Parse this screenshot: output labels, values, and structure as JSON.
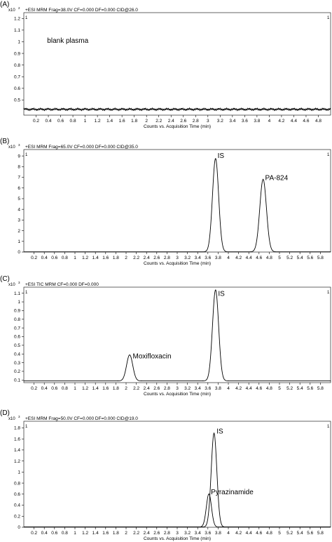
{
  "chart_data": [
    {
      "type": "line",
      "panel_label": "(A)",
      "header": "+ESI MRM Frag=38.0V CF=0.000 DF=0.000 CID@26.0",
      "y_exponent": "x10",
      "y_exp_power": "2",
      "corner_index": "1",
      "xlabel": "Counts vs. Acquisition Time (min)",
      "xlim": [
        0,
        5
      ],
      "ylim": [
        0.37,
        1.25
      ],
      "x_ticks": [
        "0.2",
        "0.4",
        "0.6",
        "0.8",
        "1",
        "1.2",
        "1.4",
        "1.6",
        "1.8",
        "2",
        "2.2",
        "2.4",
        "2.6",
        "2.8",
        "3",
        "3.2",
        "3.4",
        "3.6",
        "3.8",
        "4",
        "4.2",
        "4.4",
        "4.6",
        "4.8"
      ],
      "y_ticks": [
        "0.5",
        "0.6",
        "0.7",
        "0.8",
        "0.9",
        "1",
        "1.1",
        "1.2"
      ],
      "series": [
        {
          "baseline": 0.42,
          "peaks": []
        }
      ],
      "annotations": [
        {
          "text": "blank plasma",
          "x": 0.38,
          "y": 0.99
        }
      ]
    },
    {
      "type": "line",
      "panel_label": "(B)",
      "header": "+ESI MRM Frag=65.0V CF=0.000 DF=0.000 CID@35.0",
      "y_exponent": "x10",
      "y_exp_power": "3",
      "corner_index": "1",
      "xlabel": "Counts vs. Acquisition Time (min)",
      "xlim": [
        0,
        6
      ],
      "ylim": [
        0,
        9.6
      ],
      "x_ticks": [
        "0.2",
        "0.4",
        "0.6",
        "0.8",
        "1",
        "1.2",
        "1.4",
        "1.6",
        "1.8",
        "2",
        "2.2",
        "2.4",
        "2.6",
        "2.8",
        "3",
        "3.2",
        "3.4",
        "3.6",
        "3.8",
        "4",
        "4.2",
        "4.4",
        "4.6",
        "4.8",
        "5",
        "5.2",
        "5.4",
        "5.6",
        "5.8"
      ],
      "y_ticks": [
        "0",
        "1",
        "2",
        "3",
        "4",
        "5",
        "6",
        "7",
        "8",
        "9"
      ],
      "series": [
        {
          "baseline": 0.02,
          "peaks": [
            {
              "center": 3.75,
              "height": 8.75,
              "width": 0.06
            },
            {
              "center": 4.68,
              "height": 6.8,
              "width": 0.065
            }
          ]
        }
      ],
      "annotations": [
        {
          "text": "IS",
          "x": 3.79,
          "y": 8.8
        },
        {
          "text": "PA-824",
          "x": 4.72,
          "y": 6.75
        }
      ]
    },
    {
      "type": "line",
      "panel_label": "(C)",
      "header": "+ESI TIC MRM CF=0.000 DF=0.000",
      "y_exponent": "x10",
      "y_exp_power": "3",
      "corner_index": "1",
      "xlabel": "Counts vs. Acquisition Time (min)",
      "xlim": [
        0,
        6
      ],
      "ylim": [
        0.07,
        1.17
      ],
      "x_ticks": [
        "0.2",
        "0.4",
        "0.6",
        "0.8",
        "1",
        "1.2",
        "1.4",
        "1.6",
        "1.8",
        "2",
        "2.2",
        "2.4",
        "2.6",
        "2.8",
        "3",
        "3.2",
        "3.4",
        "3.6",
        "3.8",
        "4",
        "4.2",
        "4.4",
        "4.6",
        "4.8",
        "5",
        "5.2",
        "5.4",
        "5.6",
        "5.8"
      ],
      "y_ticks": [
        "0.1",
        "0.2",
        "0.3",
        "0.4",
        "0.5",
        "0.6",
        "0.7",
        "0.8",
        "0.9",
        "1",
        "1.1"
      ],
      "series": [
        {
          "baseline": 0.09,
          "peaks": [
            {
              "center": 2.07,
              "height": 0.3,
              "width": 0.06
            },
            {
              "center": 3.75,
              "height": 1.05,
              "width": 0.06
            }
          ]
        }
      ],
      "annotations": [
        {
          "text": "Moxifloxacin",
          "x": 2.13,
          "y": 0.35
        },
        {
          "text": "IS",
          "x": 3.8,
          "y": 1.07
        }
      ]
    },
    {
      "type": "line",
      "panel_label": "(D)",
      "header": "+ESI MRM Frag=50.0V CF=0.000 DF=0.000 CID@19.0",
      "y_exponent": "x10",
      "y_exp_power": "3",
      "corner_index": "1",
      "xlabel": "Counts vs. Acquisition Time (min)",
      "xlim": [
        0,
        6
      ],
      "ylim": [
        0,
        1.92
      ],
      "x_ticks": [
        "0.2",
        "0.4",
        "0.6",
        "0.8",
        "1",
        "1.2",
        "1.4",
        "1.6",
        "1.8",
        "2",
        "2.2",
        "2.4",
        "2.6",
        "2.8",
        "3",
        "3.2",
        "3.4",
        "3.6",
        "3.8",
        "4",
        "4.2",
        "4.4",
        "4.6",
        "4.8",
        "5",
        "5.2",
        "5.4",
        "5.6",
        "5.8"
      ],
      "y_ticks": [
        "0",
        "0.2",
        "0.4",
        "0.6",
        "0.8",
        "1",
        "1.2",
        "1.4",
        "1.6",
        "1.8"
      ],
      "series": [
        {
          "baseline": 0.005,
          "peaks": [
            {
              "center": 3.72,
              "height": 1.7,
              "width": 0.055
            }
          ]
        },
        {
          "baseline": 0.005,
          "peaks": [
            {
              "center": 3.62,
              "height": 0.6,
              "width": 0.05
            }
          ]
        }
      ],
      "annotations": [
        {
          "text": "IS",
          "x": 3.77,
          "y": 1.7
        },
        {
          "text": "Pyrazinamide",
          "x": 3.66,
          "y": 0.6
        }
      ]
    }
  ]
}
